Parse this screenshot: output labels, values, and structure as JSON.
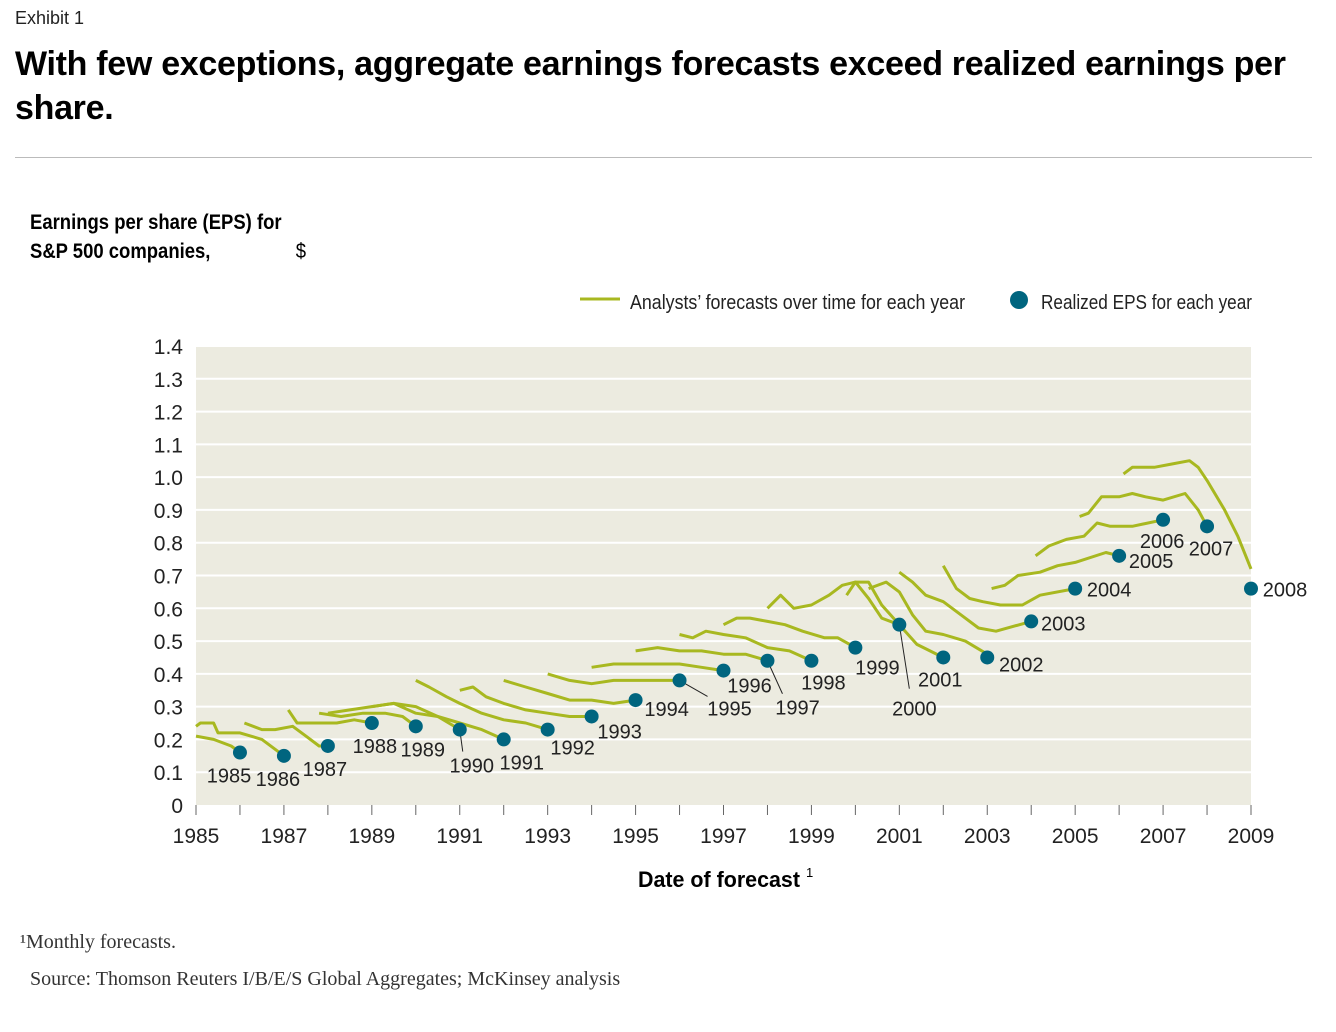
{
  "exhibit_label": "Exhibit 1",
  "title": "With few exceptions, aggregate earnings forecasts exceed realized earnings per share.",
  "footnote": "¹Monthly forecasts.",
  "source": "Source: Thomson Reuters I/B/E/S Global Aggregates; McKinsey analysis",
  "chart_data": {
    "type": "line",
    "ylabel_bold": "Earnings per share (EPS) for S&P 500 companies,",
    "ylabel_unit": "$",
    "xlabel": "Date of forecast",
    "xlabel_sup": "1",
    "xlim": [
      1985,
      2009
    ],
    "ylim": [
      0,
      1.4
    ],
    "x_ticks": [
      "1985",
      "1987",
      "1989",
      "1991",
      "1993",
      "1995",
      "1997",
      "1999",
      "2001",
      "2003",
      "2005",
      "2007",
      "2009"
    ],
    "y_ticks": [
      "0",
      "0.1",
      "0.2",
      "0.3",
      "0.4",
      "0.5",
      "0.6",
      "0.7",
      "0.8",
      "0.9",
      "1.0",
      "1.1",
      "1.2",
      "1.3",
      "1.4"
    ],
    "grid": true,
    "legend_position": "top-right",
    "colors": {
      "forecast": "#a8b820",
      "realized": "#00657f",
      "plot_bg": "#ecebe0"
    },
    "legend": {
      "forecast": "Analysts’ forecasts over time for each year",
      "realized": "Realized EPS for each year"
    },
    "realized": [
      {
        "label": "1985",
        "x": 1986.0,
        "y": 0.16
      },
      {
        "label": "1986",
        "x": 1987.0,
        "y": 0.15
      },
      {
        "label": "1987",
        "x": 1988.0,
        "y": 0.18
      },
      {
        "label": "1988",
        "x": 1989.0,
        "y": 0.25
      },
      {
        "label": "1989",
        "x": 1990.0,
        "y": 0.24
      },
      {
        "label": "1990",
        "x": 1991.0,
        "y": 0.23
      },
      {
        "label": "1991",
        "x": 1992.0,
        "y": 0.2
      },
      {
        "label": "1992",
        "x": 1993.0,
        "y": 0.23
      },
      {
        "label": "1993",
        "x": 1994.0,
        "y": 0.27
      },
      {
        "label": "1994",
        "x": 1995.0,
        "y": 0.32
      },
      {
        "label": "1995",
        "x": 1996.0,
        "y": 0.38
      },
      {
        "label": "1996",
        "x": 1997.0,
        "y": 0.41
      },
      {
        "label": "1997",
        "x": 1998.0,
        "y": 0.44
      },
      {
        "label": "1998",
        "x": 1999.0,
        "y": 0.44
      },
      {
        "label": "1999",
        "x": 2000.0,
        "y": 0.48
      },
      {
        "label": "2000",
        "x": 2001.0,
        "y": 0.55
      },
      {
        "label": "2001",
        "x": 2002.0,
        "y": 0.45
      },
      {
        "label": "2002",
        "x": 2003.0,
        "y": 0.45
      },
      {
        "label": "2003",
        "x": 2004.0,
        "y": 0.56
      },
      {
        "label": "2004",
        "x": 2005.0,
        "y": 0.66
      },
      {
        "label": "2005",
        "x": 2006.0,
        "y": 0.76
      },
      {
        "label": "2006",
        "x": 2007.0,
        "y": 0.87
      },
      {
        "label": "2007",
        "x": 2008.0,
        "y": 0.85
      },
      {
        "label": "2008",
        "x": 2009.0,
        "y": 0.66
      }
    ],
    "forecasts": [
      {
        "year": "1985",
        "points": [
          [
            1985.0,
            0.21
          ],
          [
            1985.4,
            0.2
          ],
          [
            1985.8,
            0.18
          ],
          [
            1986.0,
            0.16
          ]
        ]
      },
      {
        "year": "1986",
        "points": [
          [
            1985.0,
            0.24
          ],
          [
            1985.1,
            0.25
          ],
          [
            1985.4,
            0.25
          ],
          [
            1985.5,
            0.22
          ],
          [
            1986.0,
            0.22
          ],
          [
            1986.5,
            0.2
          ],
          [
            1987.0,
            0.15
          ]
        ]
      },
      {
        "year": "1987",
        "points": [
          [
            1986.1,
            0.25
          ],
          [
            1986.5,
            0.23
          ],
          [
            1986.8,
            0.23
          ],
          [
            1987.2,
            0.24
          ],
          [
            1987.5,
            0.21
          ],
          [
            1987.8,
            0.18
          ],
          [
            1988.0,
            0.18
          ]
        ]
      },
      {
        "year": "1988",
        "points": [
          [
            1987.1,
            0.29
          ],
          [
            1987.3,
            0.25
          ],
          [
            1987.8,
            0.25
          ],
          [
            1988.2,
            0.25
          ],
          [
            1988.6,
            0.26
          ],
          [
            1989.0,
            0.25
          ]
        ]
      },
      {
        "year": "1989",
        "points": [
          [
            1987.8,
            0.28
          ],
          [
            1988.3,
            0.27
          ],
          [
            1988.8,
            0.28
          ],
          [
            1989.3,
            0.28
          ],
          [
            1989.7,
            0.27
          ],
          [
            1990.0,
            0.24
          ]
        ]
      },
      {
        "year": "1990",
        "points": [
          [
            1988.0,
            0.28
          ],
          [
            1988.5,
            0.29
          ],
          [
            1989.0,
            0.3
          ],
          [
            1989.5,
            0.31
          ],
          [
            1990.0,
            0.28
          ],
          [
            1990.5,
            0.27
          ],
          [
            1991.0,
            0.23
          ]
        ]
      },
      {
        "year": "1991",
        "points": [
          [
            1989.0,
            0.3
          ],
          [
            1989.5,
            0.31
          ],
          [
            1990.0,
            0.3
          ],
          [
            1990.5,
            0.27
          ],
          [
            1991.0,
            0.25
          ],
          [
            1991.5,
            0.23
          ],
          [
            1992.0,
            0.2
          ]
        ]
      },
      {
        "year": "1992",
        "points": [
          [
            1990.0,
            0.38
          ],
          [
            1990.3,
            0.36
          ],
          [
            1990.7,
            0.33
          ],
          [
            1991.0,
            0.31
          ],
          [
            1991.5,
            0.28
          ],
          [
            1992.0,
            0.26
          ],
          [
            1992.5,
            0.25
          ],
          [
            1993.0,
            0.23
          ]
        ]
      },
      {
        "year": "1993",
        "points": [
          [
            1991.0,
            0.35
          ],
          [
            1991.3,
            0.36
          ],
          [
            1991.6,
            0.33
          ],
          [
            1992.0,
            0.31
          ],
          [
            1992.5,
            0.29
          ],
          [
            1993.0,
            0.28
          ],
          [
            1993.5,
            0.27
          ],
          [
            1994.0,
            0.27
          ]
        ]
      },
      {
        "year": "1994",
        "points": [
          [
            1992.0,
            0.38
          ],
          [
            1992.5,
            0.36
          ],
          [
            1993.0,
            0.34
          ],
          [
            1993.5,
            0.32
          ],
          [
            1994.0,
            0.32
          ],
          [
            1994.5,
            0.31
          ],
          [
            1995.0,
            0.32
          ]
        ]
      },
      {
        "year": "1995",
        "points": [
          [
            1993.0,
            0.4
          ],
          [
            1993.5,
            0.38
          ],
          [
            1994.0,
            0.37
          ],
          [
            1994.5,
            0.38
          ],
          [
            1995.0,
            0.38
          ],
          [
            1995.5,
            0.38
          ],
          [
            1996.0,
            0.38
          ]
        ]
      },
      {
        "year": "1996",
        "points": [
          [
            1994.0,
            0.42
          ],
          [
            1994.5,
            0.43
          ],
          [
            1995.0,
            0.43
          ],
          [
            1995.5,
            0.43
          ],
          [
            1996.0,
            0.43
          ],
          [
            1996.5,
            0.42
          ],
          [
            1997.0,
            0.41
          ]
        ]
      },
      {
        "year": "1997",
        "points": [
          [
            1995.0,
            0.47
          ],
          [
            1995.5,
            0.48
          ],
          [
            1996.0,
            0.47
          ],
          [
            1996.5,
            0.47
          ],
          [
            1997.0,
            0.46
          ],
          [
            1997.5,
            0.46
          ],
          [
            1998.0,
            0.44
          ]
        ]
      },
      {
        "year": "1998",
        "points": [
          [
            1996.0,
            0.52
          ],
          [
            1996.3,
            0.51
          ],
          [
            1996.6,
            0.53
          ],
          [
            1997.0,
            0.52
          ],
          [
            1997.5,
            0.51
          ],
          [
            1998.0,
            0.48
          ],
          [
            1998.5,
            0.47
          ],
          [
            1999.0,
            0.44
          ]
        ]
      },
      {
        "year": "1999",
        "points": [
          [
            1997.0,
            0.55
          ],
          [
            1997.3,
            0.57
          ],
          [
            1997.6,
            0.57
          ],
          [
            1998.0,
            0.56
          ],
          [
            1998.4,
            0.55
          ],
          [
            1998.8,
            0.53
          ],
          [
            1999.3,
            0.51
          ],
          [
            1999.6,
            0.51
          ],
          [
            2000.0,
            0.48
          ]
        ]
      },
      {
        "year": "2000",
        "points": [
          [
            1998.0,
            0.6
          ],
          [
            1998.3,
            0.64
          ],
          [
            1998.6,
            0.6
          ],
          [
            1999.0,
            0.61
          ],
          [
            1999.4,
            0.64
          ],
          [
            1999.7,
            0.67
          ],
          [
            2000.0,
            0.68
          ],
          [
            2000.3,
            0.63
          ],
          [
            2000.6,
            0.57
          ],
          [
            2001.0,
            0.55
          ]
        ]
      },
      {
        "year": "2001",
        "points": [
          [
            1999.8,
            0.64
          ],
          [
            2000.0,
            0.68
          ],
          [
            2000.3,
            0.68
          ],
          [
            2000.6,
            0.61
          ],
          [
            2001.0,
            0.55
          ],
          [
            2001.4,
            0.49
          ],
          [
            2002.0,
            0.45
          ]
        ]
      },
      {
        "year": "2002",
        "points": [
          [
            2000.3,
            0.66
          ],
          [
            2000.7,
            0.68
          ],
          [
            2001.0,
            0.65
          ],
          [
            2001.3,
            0.58
          ],
          [
            2001.6,
            0.53
          ],
          [
            2002.0,
            0.52
          ],
          [
            2002.5,
            0.5
          ],
          [
            2003.0,
            0.46
          ]
        ]
      },
      {
        "year": "2003",
        "points": [
          [
            2001.0,
            0.71
          ],
          [
            2001.3,
            0.68
          ],
          [
            2001.6,
            0.64
          ],
          [
            2002.0,
            0.62
          ],
          [
            2002.4,
            0.58
          ],
          [
            2002.8,
            0.54
          ],
          [
            2003.2,
            0.53
          ],
          [
            2004.0,
            0.56
          ]
        ]
      },
      {
        "year": "2004",
        "points": [
          [
            2002.0,
            0.73
          ],
          [
            2002.3,
            0.66
          ],
          [
            2002.6,
            0.63
          ],
          [
            2002.9,
            0.62
          ],
          [
            2003.3,
            0.61
          ],
          [
            2003.8,
            0.61
          ],
          [
            2004.2,
            0.64
          ],
          [
            2005.0,
            0.66
          ]
        ]
      },
      {
        "year": "2005",
        "points": [
          [
            2003.1,
            0.66
          ],
          [
            2003.4,
            0.67
          ],
          [
            2003.7,
            0.7
          ],
          [
            2004.2,
            0.71
          ],
          [
            2004.6,
            0.73
          ],
          [
            2005.0,
            0.74
          ],
          [
            2005.7,
            0.77
          ],
          [
            2006.0,
            0.76
          ]
        ]
      },
      {
        "year": "2006",
        "points": [
          [
            2004.1,
            0.76
          ],
          [
            2004.4,
            0.79
          ],
          [
            2004.8,
            0.81
          ],
          [
            2005.2,
            0.82
          ],
          [
            2005.5,
            0.86
          ],
          [
            2005.8,
            0.85
          ],
          [
            2006.3,
            0.85
          ],
          [
            2007.0,
            0.87
          ]
        ]
      },
      {
        "year": "2007",
        "points": [
          [
            2005.1,
            0.88
          ],
          [
            2005.3,
            0.89
          ],
          [
            2005.6,
            0.94
          ],
          [
            2006.0,
            0.94
          ],
          [
            2006.3,
            0.95
          ],
          [
            2006.6,
            0.94
          ],
          [
            2007.0,
            0.93
          ],
          [
            2007.5,
            0.95
          ],
          [
            2007.8,
            0.9
          ],
          [
            2008.0,
            0.85
          ]
        ]
      },
      {
        "year": "2008",
        "points": [
          [
            2006.1,
            1.01
          ],
          [
            2006.3,
            1.03
          ],
          [
            2006.8,
            1.03
          ],
          [
            2007.2,
            1.04
          ],
          [
            2007.6,
            1.05
          ],
          [
            2007.8,
            1.03
          ],
          [
            2008.0,
            0.99
          ],
          [
            2008.4,
            0.9
          ],
          [
            2008.7,
            0.82
          ],
          [
            2009.0,
            0.72
          ]
        ]
      }
    ]
  }
}
